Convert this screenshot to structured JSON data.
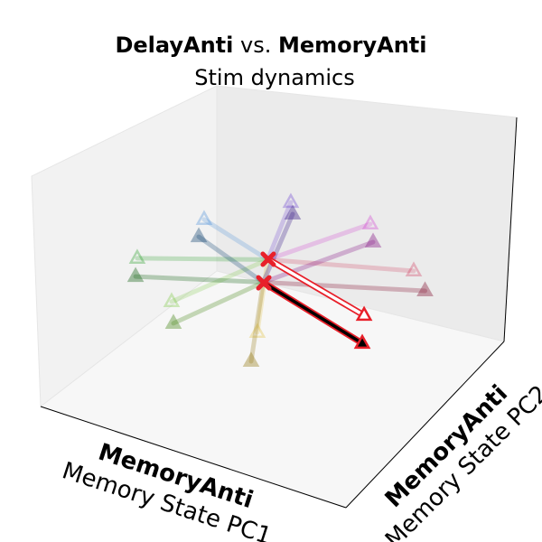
{
  "chart_data": {
    "type": "line3d",
    "title": [
      "DelayAnti",
      "vs.",
      "MemoryAnti"
    ],
    "subtitle": "Stim dynamics",
    "xlabel": [
      "MemoryAnti",
      "Memory State PC1"
    ],
    "ylabel": [
      "MemoryAnti",
      "Memory State PC2"
    ],
    "xlim": [
      -1,
      1
    ],
    "ylim": [
      -1,
      1
    ],
    "zlim": [
      -1,
      1
    ],
    "series": [
      {
        "color": "#4a90d9",
        "marker": "open",
        "x": [
          -0.03,
          -0.447
        ],
        "y": [
          0,
          0
        ],
        "z": [
          -0.02,
          0.145
        ]
      },
      {
        "color": "#6a3fd0",
        "marker": "open",
        "x": [
          -0.03,
          0.121
        ],
        "y": [
          0,
          0
        ],
        "z": [
          -0.02,
          0.543
        ]
      },
      {
        "color": "#d040d0",
        "marker": "open",
        "x": [
          -0.03,
          0.642
        ],
        "y": [
          0,
          0
        ],
        "z": [
          -0.02,
          0.584
        ]
      },
      {
        "color": "#d04060",
        "marker": "open",
        "x": [
          -0.03,
          0.926
        ],
        "y": [
          0,
          0
        ],
        "z": [
          -0.02,
          0.301
        ]
      },
      {
        "color": "#2ca02c",
        "marker": "open",
        "x": [
          -0.03,
          -0.885
        ],
        "y": [
          0,
          0
        ],
        "z": [
          -0.02,
          -0.384
        ]
      },
      {
        "color": "#7ac943",
        "marker": "open",
        "x": [
          -0.03,
          -0.66
        ],
        "y": [
          0,
          0
        ],
        "z": [
          -0.02,
          -0.662
        ]
      },
      {
        "color": "#e0c040",
        "marker": "open",
        "x": [
          -0.03,
          -0.098
        ],
        "y": [
          0,
          0
        ],
        "z": [
          -0.02,
          -0.682
        ]
      },
      {
        "color": "#1f4e79",
        "marker": "filled",
        "x": [
          -0.06,
          -0.482
        ],
        "y": [
          0,
          0
        ],
        "z": [
          -0.23,
          -0.02
        ]
      },
      {
        "color": "#3b1f8a",
        "marker": "filled",
        "x": [
          -0.06,
          0.133
        ],
        "y": [
          0,
          0
        ],
        "z": [
          -0.23,
          0.447
        ]
      },
      {
        "color": "#8a1f8a",
        "marker": "filled",
        "x": [
          -0.06,
          0.66
        ],
        "y": [
          0,
          0
        ],
        "z": [
          -0.23,
          0.435
        ]
      },
      {
        "color": "#8a1f3b",
        "marker": "filled",
        "x": [
          -0.06,
          1.0
        ],
        "y": [
          0,
          0
        ],
        "z": [
          -0.23,
          0.161
        ]
      },
      {
        "color": "#1f6b1f",
        "marker": "filled",
        "x": [
          -0.06,
          -0.896
        ],
        "y": [
          0,
          0
        ],
        "z": [
          -0.23,
          -0.547
        ]
      },
      {
        "color": "#4d8a1f",
        "marker": "filled",
        "x": [
          -0.06,
          -0.648
        ],
        "y": [
          0,
          0
        ],
        "z": [
          -0.23,
          -0.845
        ]
      },
      {
        "color": "#9a8020",
        "marker": "filled",
        "x": [
          -0.06,
          -0.139
        ],
        "y": [
          0,
          0
        ],
        "z": [
          -0.23,
          -0.951
        ]
      },
      {
        "color": "#e8202a",
        "marker": "open",
        "highlight": true,
        "x": [
          -0.027,
          0.601
        ],
        "y": [
          0,
          0
        ],
        "z": [
          -0.016,
          -0.227
        ]
      },
      {
        "color": "#000000",
        "marker": "filled",
        "highlight": true,
        "x": [
          -0.056,
          0.589
        ],
        "y": [
          0,
          0
        ],
        "z": [
          -0.233,
          -0.475
        ]
      }
    ]
  }
}
